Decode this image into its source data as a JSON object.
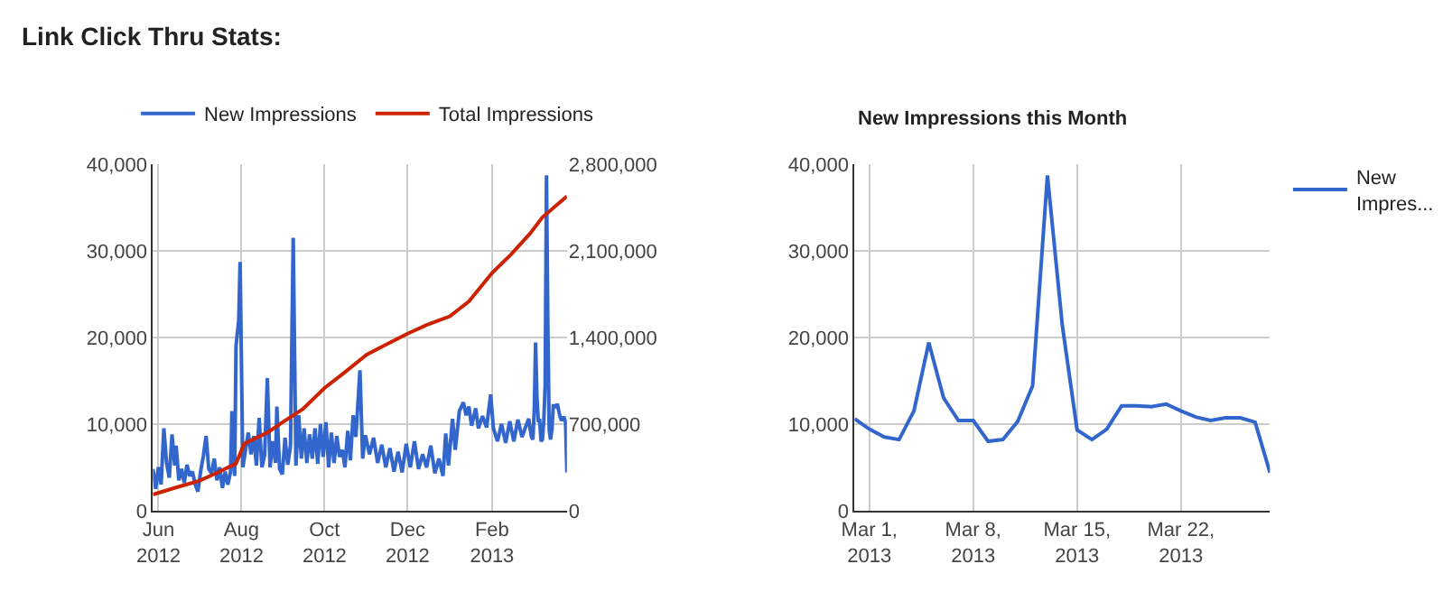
{
  "chart_data": [
    {
      "type": "line",
      "title": "Link Click Thru Stats:",
      "legend": "top",
      "grid": true,
      "marker": "none",
      "line_style": "solid",
      "xlim": [
        "2012-05-28",
        "2013-03-28"
      ],
      "xticks": [
        {
          "value": "2012-06-01",
          "label": "Jun\n2012"
        },
        {
          "value": "2012-08-01",
          "label": "Aug\n2012"
        },
        {
          "value": "2012-10-01",
          "label": "Oct\n2012"
        },
        {
          "value": "2012-12-01",
          "label": "Dec\n2012"
        },
        {
          "value": "2013-02-01",
          "label": "Feb\n2013"
        }
      ],
      "ylim": [
        0,
        40000
      ],
      "yticks": [
        {
          "value": 0,
          "label": "0"
        },
        {
          "value": 10000,
          "label": "10,000"
        },
        {
          "value": 20000,
          "label": "20,000"
        },
        {
          "value": 30000,
          "label": "30,000"
        },
        {
          "value": 40000,
          "label": "40,000"
        }
      ],
      "y2lim": [
        0,
        2800000
      ],
      "y2ticks": [
        {
          "value": 0,
          "label": "0"
        },
        {
          "value": 700000,
          "label": "700,000"
        },
        {
          "value": 1400000,
          "label": "1,400,000"
        },
        {
          "value": 2100000,
          "label": "2,100,000"
        },
        {
          "value": 2800000,
          "label": "2,800,000"
        }
      ],
      "series": [
        {
          "name": "New Impressions",
          "color": "#3366cc",
          "x": [
            "2012-05-28",
            "2012-05-30",
            "2012-06-01",
            "2012-06-03",
            "2012-06-05",
            "2012-06-07",
            "2012-06-09",
            "2012-06-11",
            "2012-06-13",
            "2012-06-14",
            "2012-06-16",
            "2012-06-18",
            "2012-06-20",
            "2012-06-22",
            "2012-06-24",
            "2012-06-26",
            "2012-06-28",
            "2012-06-30",
            "2012-07-02",
            "2012-07-04",
            "2012-07-06",
            "2012-07-08",
            "2012-07-10",
            "2012-07-12",
            "2012-07-14",
            "2012-07-16",
            "2012-07-18",
            "2012-07-20",
            "2012-07-22",
            "2012-07-24",
            "2012-07-25",
            "2012-07-27",
            "2012-07-28",
            "2012-07-30",
            "2012-07-31",
            "2012-08-02",
            "2012-08-04",
            "2012-08-06",
            "2012-08-08",
            "2012-08-10",
            "2012-08-12",
            "2012-08-14",
            "2012-08-16",
            "2012-08-18",
            "2012-08-20",
            "2012-08-22",
            "2012-08-24",
            "2012-08-26",
            "2012-08-27",
            "2012-08-29",
            "2012-08-31",
            "2012-09-02",
            "2012-09-04",
            "2012-09-06",
            "2012-09-08",
            "2012-09-10",
            "2012-09-12",
            "2012-09-14",
            "2012-09-16",
            "2012-09-18",
            "2012-09-20",
            "2012-09-22",
            "2012-09-24",
            "2012-09-26",
            "2012-09-28",
            "2012-09-30",
            "2012-10-02",
            "2012-10-04",
            "2012-10-06",
            "2012-10-08",
            "2012-10-10",
            "2012-10-12",
            "2012-10-14",
            "2012-10-16",
            "2012-10-18",
            "2012-10-20",
            "2012-10-22",
            "2012-10-24",
            "2012-10-27",
            "2012-10-29",
            "2012-10-31",
            "2012-11-03",
            "2012-11-06",
            "2012-11-09",
            "2012-11-12",
            "2012-11-15",
            "2012-11-18",
            "2012-11-21",
            "2012-11-24",
            "2012-11-27",
            "2012-11-30",
            "2012-12-03",
            "2012-12-06",
            "2012-12-09",
            "2012-12-12",
            "2012-12-15",
            "2012-12-18",
            "2012-12-21",
            "2012-12-24",
            "2012-12-27",
            "2012-12-29",
            "2012-12-31",
            "2013-01-03",
            "2013-01-05",
            "2013-01-08",
            "2013-01-11",
            "2013-01-13",
            "2013-01-15",
            "2013-01-17",
            "2013-01-20",
            "2013-01-22",
            "2013-01-25",
            "2013-01-28",
            "2013-01-31",
            "2013-02-02",
            "2013-02-05",
            "2013-02-08",
            "2013-02-11",
            "2013-02-14",
            "2013-02-17",
            "2013-02-20",
            "2013-02-23",
            "2013-02-26",
            "2013-02-28",
            "2013-03-01",
            "2013-03-02",
            "2013-03-03",
            "2013-03-04",
            "2013-03-05",
            "2013-03-06",
            "2013-03-07",
            "2013-03-08",
            "2013-03-09",
            "2013-03-10",
            "2013-03-11",
            "2013-03-12",
            "2013-03-13",
            "2013-03-14",
            "2013-03-15",
            "2013-03-16",
            "2013-03-17",
            "2013-03-18",
            "2013-03-19",
            "2013-03-20",
            "2013-03-21",
            "2013-03-22",
            "2013-03-23",
            "2013-03-24",
            "2013-03-25",
            "2013-03-26",
            "2013-03-27",
            "2013-03-28"
          ],
          "values": [
            4800,
            2500,
            5000,
            3000,
            9500,
            5500,
            3800,
            8800,
            5200,
            7500,
            3500,
            4800,
            3200,
            5300,
            4000,
            4500,
            3000,
            2200,
            4500,
            6300,
            8600,
            4800,
            4300,
            6000,
            3500,
            5000,
            2600,
            4500,
            3000,
            4500,
            11500,
            4000,
            19000,
            22000,
            28700,
            5000,
            7000,
            9000,
            6500,
            8600,
            5200,
            10700,
            5000,
            6400,
            15300,
            5000,
            8000,
            5500,
            12000,
            4800,
            4200,
            8400,
            5300,
            7500,
            31500,
            5200,
            11000,
            6000,
            9500,
            5500,
            8800,
            6000,
            9500,
            5400,
            10000,
            6200,
            10200,
            5000,
            9000,
            5500,
            8600,
            6200,
            7000,
            5000,
            9200,
            5800,
            11000,
            8500,
            16200,
            6000,
            8700,
            6500,
            8400,
            5500,
            7600,
            5000,
            7200,
            4500,
            6800,
            4400,
            7700,
            5000,
            8000,
            4800,
            6500,
            5000,
            7500,
            4300,
            6000,
            4000,
            8900,
            5200,
            10600,
            7000,
            11500,
            12500,
            11000,
            12000,
            9800,
            11800,
            9500,
            10900,
            9600,
            13400,
            9500,
            8000,
            10000,
            7800,
            10300,
            8000,
            10500,
            8500,
            9800,
            10600,
            9400,
            8500,
            8200,
            11500,
            19400,
            13000,
            10400,
            10400,
            8000,
            8200,
            10300,
            14400,
            38700,
            21400,
            9300,
            8200,
            9400,
            12100,
            12100,
            12000,
            12300,
            11500,
            10800,
            10400,
            10700,
            10700,
            10200,
            4400
          ]
        },
        {
          "name": "Total Impressions",
          "color": "#cc2200",
          "axis": "y2",
          "x": [
            "2012-05-28",
            "2012-06-15",
            "2012-07-01",
            "2012-07-15",
            "2012-07-28",
            "2012-08-03",
            "2012-08-20",
            "2012-09-01",
            "2012-09-15",
            "2012-10-01",
            "2012-10-15",
            "2012-11-01",
            "2012-11-15",
            "2012-12-01",
            "2012-12-15",
            "2013-01-01",
            "2013-01-15",
            "2013-02-01",
            "2013-02-15",
            "2013-03-01",
            "2013-03-10",
            "2013-03-28"
          ],
          "values": [
            130000,
            190000,
            240000,
            310000,
            380000,
            540000,
            630000,
            720000,
            820000,
            990000,
            1110000,
            1260000,
            1340000,
            1430000,
            1500000,
            1570000,
            1690000,
            1920000,
            2070000,
            2240000,
            2370000,
            2540000
          ]
        }
      ]
    },
    {
      "type": "line",
      "title": "New Impressions this Month",
      "legend": "top right",
      "grid": true,
      "marker": "none",
      "line_style": "solid",
      "xlim": [
        "2013-02-28",
        "2013-03-28"
      ],
      "xticks": [
        {
          "value": "2013-03-01",
          "label": "Mar 1,\n2013"
        },
        {
          "value": "2013-03-08",
          "label": "Mar 8,\n2013"
        },
        {
          "value": "2013-03-15",
          "label": "Mar 15,\n2013"
        },
        {
          "value": "2013-03-22",
          "label": "Mar 22,\n2013"
        }
      ],
      "ylim": [
        0,
        40000
      ],
      "yticks": [
        {
          "value": 0,
          "label": "0"
        },
        {
          "value": 10000,
          "label": "10,000"
        },
        {
          "value": 20000,
          "label": "20,000"
        },
        {
          "value": 30000,
          "label": "30,000"
        },
        {
          "value": 40000,
          "label": "40,000"
        }
      ],
      "series": [
        {
          "name": "New\nImpres...",
          "color": "#3366cc",
          "x": [
            "2013-02-28",
            "2013-03-01",
            "2013-03-02",
            "2013-03-03",
            "2013-03-04",
            "2013-03-05",
            "2013-03-06",
            "2013-03-07",
            "2013-03-08",
            "2013-03-09",
            "2013-03-10",
            "2013-03-11",
            "2013-03-12",
            "2013-03-13",
            "2013-03-14",
            "2013-03-15",
            "2013-03-16",
            "2013-03-17",
            "2013-03-18",
            "2013-03-19",
            "2013-03-20",
            "2013-03-21",
            "2013-03-22",
            "2013-03-23",
            "2013-03-24",
            "2013-03-25",
            "2013-03-26",
            "2013-03-27",
            "2013-03-28"
          ],
          "values": [
            10600,
            9400,
            8500,
            8200,
            11500,
            19400,
            13000,
            10400,
            10400,
            8000,
            8200,
            10300,
            14400,
            38700,
            21400,
            9300,
            8200,
            9400,
            12100,
            12100,
            12000,
            12300,
            11500,
            10800,
            10400,
            10700,
            10700,
            10200,
            4400
          ]
        }
      ]
    }
  ]
}
